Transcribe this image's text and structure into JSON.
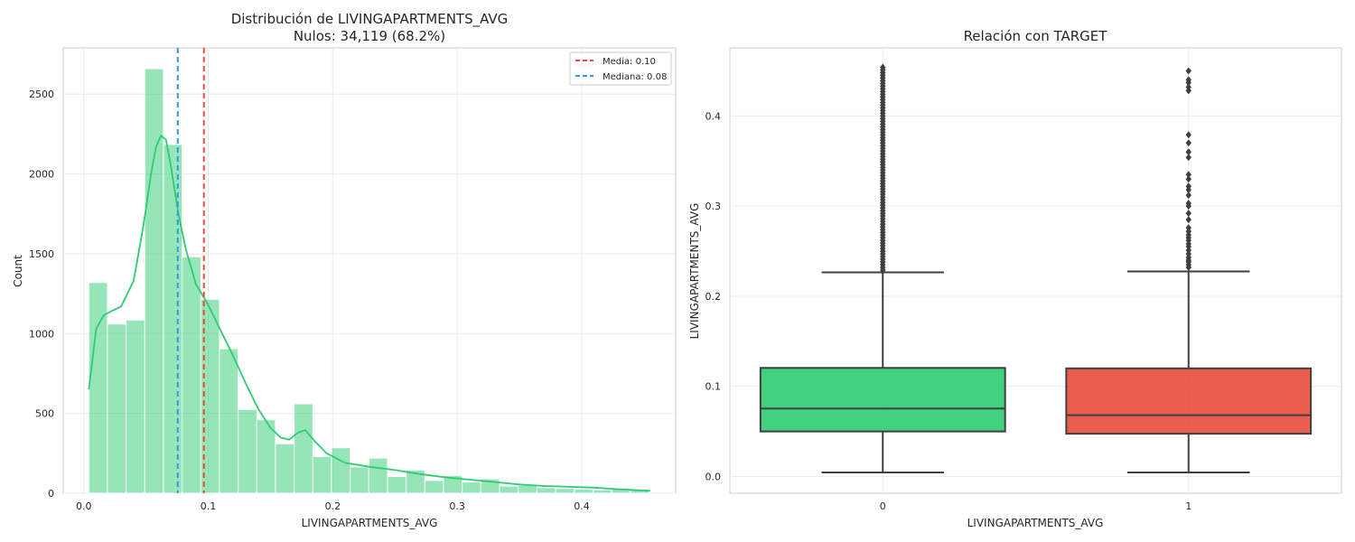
{
  "chart_data": [
    {
      "type": "bar",
      "title": "Distribución de LIVINGAPARTMENTS_AVG",
      "subtitle": "Nulos: 34,119 (68.2%)",
      "xlabel": "LIVINGAPARTMENTS_AVG",
      "ylabel": "Count",
      "xlim": [
        -0.0165,
        0.4755
      ],
      "ylim": [
        0,
        2790
      ],
      "xticks": [
        0.0,
        0.1,
        0.2,
        0.3,
        0.4
      ],
      "xtick_labels": [
        "0.0",
        "0.1",
        "0.2",
        "0.3",
        "0.4"
      ],
      "yticks": [
        0,
        500,
        1000,
        1500,
        2000,
        2500
      ],
      "ytick_labels": [
        "0",
        "500",
        "1000",
        "1500",
        "2000",
        "2500"
      ],
      "grid": true,
      "legend_position": "top-right",
      "bar_color": "#2ecc71",
      "bins": [
        {
          "x0": 0.004,
          "x1": 0.019,
          "count": 1320
        },
        {
          "x0": 0.019,
          "x1": 0.034,
          "count": 1060
        },
        {
          "x0": 0.034,
          "x1": 0.049,
          "count": 1085
        },
        {
          "x0": 0.049,
          "x1": 0.064,
          "count": 2660
        },
        {
          "x0": 0.064,
          "x1": 0.079,
          "count": 2185
        },
        {
          "x0": 0.079,
          "x1": 0.094,
          "count": 1480
        },
        {
          "x0": 0.094,
          "x1": 0.109,
          "count": 1215
        },
        {
          "x0": 0.109,
          "x1": 0.124,
          "count": 905
        },
        {
          "x0": 0.124,
          "x1": 0.139,
          "count": 525
        },
        {
          "x0": 0.139,
          "x1": 0.154,
          "count": 460
        },
        {
          "x0": 0.154,
          "x1": 0.169,
          "count": 310
        },
        {
          "x0": 0.169,
          "x1": 0.184,
          "count": 560
        },
        {
          "x0": 0.184,
          "x1": 0.199,
          "count": 230
        },
        {
          "x0": 0.199,
          "x1": 0.214,
          "count": 285
        },
        {
          "x0": 0.214,
          "x1": 0.229,
          "count": 165
        },
        {
          "x0": 0.229,
          "x1": 0.244,
          "count": 220
        },
        {
          "x0": 0.244,
          "x1": 0.259,
          "count": 105
        },
        {
          "x0": 0.259,
          "x1": 0.274,
          "count": 145
        },
        {
          "x0": 0.274,
          "x1": 0.289,
          "count": 80
        },
        {
          "x0": 0.289,
          "x1": 0.304,
          "count": 110
        },
        {
          "x0": 0.304,
          "x1": 0.319,
          "count": 70
        },
        {
          "x0": 0.319,
          "x1": 0.334,
          "count": 90
        },
        {
          "x0": 0.334,
          "x1": 0.349,
          "count": 45
        },
        {
          "x0": 0.349,
          "x1": 0.364,
          "count": 50
        },
        {
          "x0": 0.364,
          "x1": 0.379,
          "count": 35
        },
        {
          "x0": 0.379,
          "x1": 0.394,
          "count": 30
        },
        {
          "x0": 0.394,
          "x1": 0.409,
          "count": 25
        },
        {
          "x0": 0.409,
          "x1": 0.424,
          "count": 20
        },
        {
          "x0": 0.424,
          "x1": 0.439,
          "count": 30
        },
        {
          "x0": 0.439,
          "x1": 0.454,
          "count": 20
        }
      ],
      "kde": {
        "color": "#2ecc71",
        "x": [
          0.004,
          0.01,
          0.016,
          0.022,
          0.03,
          0.04,
          0.048,
          0.054,
          0.058,
          0.062,
          0.066,
          0.07,
          0.076,
          0.082,
          0.09,
          0.1,
          0.11,
          0.12,
          0.13,
          0.14,
          0.15,
          0.158,
          0.165,
          0.172,
          0.178,
          0.185,
          0.195,
          0.21,
          0.23,
          0.25,
          0.27,
          0.29,
          0.31,
          0.33,
          0.35,
          0.37,
          0.39,
          0.41,
          0.43,
          0.455
        ],
        "y": [
          650,
          1030,
          1115,
          1140,
          1170,
          1330,
          1680,
          2000,
          2170,
          2240,
          2215,
          2050,
          1750,
          1530,
          1310,
          1180,
          1020,
          860,
          690,
          530,
          410,
          350,
          335,
          380,
          395,
          330,
          250,
          190,
          165,
          145,
          120,
          100,
          85,
          70,
          55,
          45,
          40,
          35,
          25,
          15
        ]
      },
      "reference_lines": [
        {
          "label": "Media: 0.10",
          "x": 0.0965,
          "color": "#e74c3c"
        },
        {
          "label": "Mediana: 0.08",
          "x": 0.0755,
          "color": "#3498db"
        }
      ]
    },
    {
      "type": "box",
      "title": "Relación con TARGET",
      "xlabel": "LIVINGAPARTMENTS_AVG",
      "ylabel": "LIVINGAPARTMENTS_AVG",
      "categories": [
        "0",
        "1"
      ],
      "ylim": [
        -0.0185,
        0.4755
      ],
      "yticks": [
        0.0,
        0.1,
        0.2,
        0.3,
        0.4
      ],
      "ytick_labels": [
        "0.0",
        "0.1",
        "0.2",
        "0.3",
        "0.4"
      ],
      "grid": true,
      "boxes": [
        {
          "category": "0",
          "color": "#2ecc71",
          "whisker_low": 0.0045,
          "q1": 0.05,
          "median": 0.0755,
          "q3": 0.1205,
          "whisker_high": 0.2265,
          "outliers": [
            0.229,
            0.232,
            0.235,
            0.238,
            0.241,
            0.244,
            0.247,
            0.25,
            0.253,
            0.256,
            0.259,
            0.262,
            0.265,
            0.268,
            0.271,
            0.274,
            0.277,
            0.28,
            0.283,
            0.286,
            0.289,
            0.292,
            0.295,
            0.298,
            0.301,
            0.304,
            0.307,
            0.31,
            0.313,
            0.316,
            0.319,
            0.322,
            0.325,
            0.328,
            0.331,
            0.334,
            0.337,
            0.34,
            0.343,
            0.346,
            0.349,
            0.352,
            0.355,
            0.358,
            0.361,
            0.364,
            0.367,
            0.37,
            0.373,
            0.376,
            0.379,
            0.382,
            0.385,
            0.388,
            0.391,
            0.394,
            0.397,
            0.4,
            0.403,
            0.406,
            0.409,
            0.412,
            0.415,
            0.418,
            0.421,
            0.424,
            0.427,
            0.43,
            0.433,
            0.436,
            0.439,
            0.442,
            0.445,
            0.448,
            0.451,
            0.454
          ]
        },
        {
          "category": "1",
          "color": "#e74c3c",
          "whisker_low": 0.0045,
          "q1": 0.0475,
          "median": 0.068,
          "q3": 0.12,
          "whisker_high": 0.2275,
          "outliers": [
            0.232,
            0.235,
            0.238,
            0.24,
            0.243,
            0.247,
            0.251,
            0.255,
            0.258,
            0.262,
            0.265,
            0.268,
            0.272,
            0.276,
            0.285,
            0.292,
            0.3,
            0.303,
            0.312,
            0.318,
            0.322,
            0.33,
            0.335,
            0.354,
            0.36,
            0.37,
            0.379,
            0.428,
            0.432,
            0.437,
            0.44,
            0.45
          ]
        }
      ]
    }
  ]
}
